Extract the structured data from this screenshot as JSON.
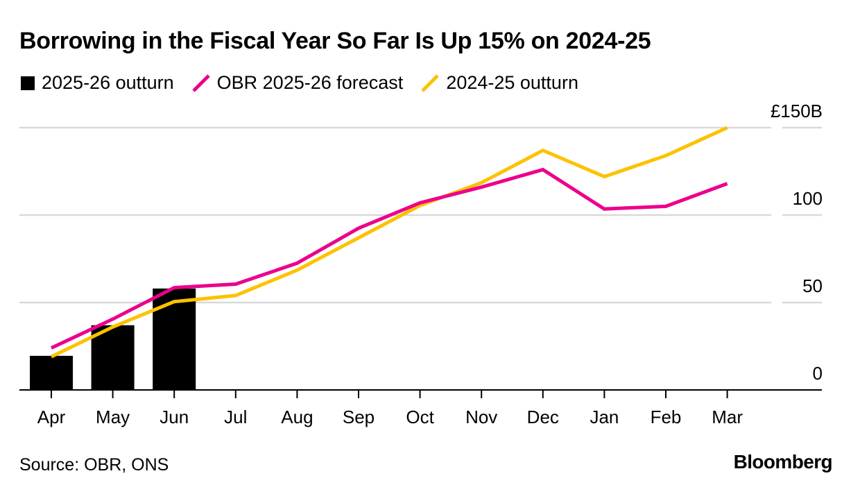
{
  "title": "Borrowing in the Fiscal Year So Far Is Up 15% on 2024-25",
  "source": "Source: OBR, ONS",
  "brand": "Bloomberg",
  "chart_data": {
    "type": "bar+line",
    "categories": [
      "Apr",
      "May",
      "Jun",
      "Jul",
      "Aug",
      "Sep",
      "Oct",
      "Nov",
      "Dec",
      "Jan",
      "Feb",
      "Mar"
    ],
    "ylim": [
      0,
      150
    ],
    "yticks": [
      {
        "value": 0,
        "label": "0"
      },
      {
        "value": 50,
        "label": "50"
      },
      {
        "value": 100,
        "label": "100"
      },
      {
        "value": 150,
        "label": "£150B"
      }
    ],
    "grid": true,
    "legend_position": "top-left",
    "bars": {
      "name": "2025-26 outturn",
      "color": "#000000",
      "values": [
        19.5,
        37,
        58
      ]
    },
    "series": [
      {
        "name": "OBR 2025-26 forecast",
        "color": "#ec008c",
        "values": [
          24,
          40.5,
          58.5,
          60.5,
          72.5,
          92.5,
          107,
          116,
          126,
          103.5,
          105,
          118
        ]
      },
      {
        "name": "2024-25 outturn",
        "color": "#fcc200",
        "values": [
          19,
          36,
          50.5,
          54,
          68.5,
          87,
          105.5,
          118.5,
          137,
          122,
          134,
          150
        ]
      }
    ]
  }
}
